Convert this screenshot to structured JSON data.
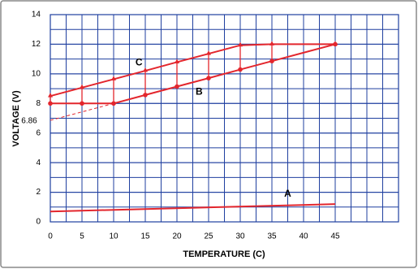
{
  "chart_data": {
    "type": "line",
    "x_label": "TEMPERATURE (C)",
    "y_label": "VOLTAGE (V)",
    "xlim": [
      0,
      55
    ],
    "ylim": [
      0,
      14
    ],
    "xticks": [
      0,
      5,
      10,
      15,
      20,
      25,
      30,
      35,
      40,
      45
    ],
    "yticks": [
      0,
      2,
      4,
      6,
      8,
      10,
      12,
      14
    ],
    "grid": true,
    "grid_color": "#1f3f9f",
    "series": [
      {
        "name": "A",
        "color": "#e3262d",
        "x": [
          0,
          45
        ],
        "values": [
          0.7,
          1.2
        ]
      },
      {
        "name": "B",
        "color": "#e3262d",
        "marker": "circle",
        "x": [
          0,
          5,
          10,
          15,
          20,
          25,
          30,
          35,
          45
        ],
        "values": [
          8,
          8,
          8,
          8.57,
          9.14,
          9.71,
          10.29,
          10.86,
          12
        ]
      },
      {
        "name": "C",
        "color": "#e3262d",
        "marker": "triangle",
        "x": [
          0,
          5,
          10,
          15,
          20,
          25,
          30,
          35,
          45
        ],
        "values": [
          8.5,
          9.07,
          9.64,
          10.21,
          10.79,
          11.36,
          11.93,
          12,
          12
        ]
      },
      {
        "color": "#e3262d",
        "dashed": true,
        "x": [
          0,
          10
        ],
        "values": [
          6.86,
          8
        ],
        "start_label": "6.86"
      }
    ]
  }
}
